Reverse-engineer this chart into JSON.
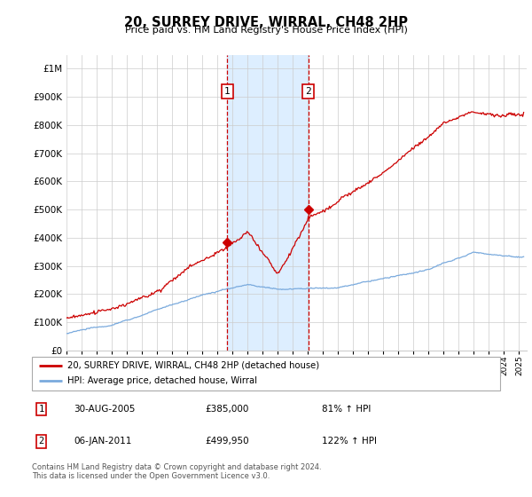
{
  "title": "20, SURREY DRIVE, WIRRAL, CH48 2HP",
  "subtitle": "Price paid vs. HM Land Registry's House Price Index (HPI)",
  "ytick_values": [
    0,
    100000,
    200000,
    300000,
    400000,
    500000,
    600000,
    700000,
    800000,
    900000,
    1000000
  ],
  "ylim": [
    0,
    1050000
  ],
  "xlim_start": 1995.0,
  "xlim_end": 2025.5,
  "red_color": "#cc0000",
  "blue_color": "#7aaadd",
  "highlight_color": "#ddeeff",
  "grid_color": "#cccccc",
  "sale1_x": 2005.66,
  "sale1_y": 385000,
  "sale2_x": 2011.02,
  "sale2_y": 499950,
  "sale1_date": "30-AUG-2005",
  "sale1_price": "£385,000",
  "sale1_hpi": "81% ↑ HPI",
  "sale2_date": "06-JAN-2011",
  "sale2_price": "£499,950",
  "sale2_hpi": "122% ↑ HPI",
  "legend_line1": "20, SURREY DRIVE, WIRRAL, CH48 2HP (detached house)",
  "legend_line2": "HPI: Average price, detached house, Wirral",
  "footnote": "Contains HM Land Registry data © Crown copyright and database right 2024.\nThis data is licensed under the Open Government Licence v3.0."
}
